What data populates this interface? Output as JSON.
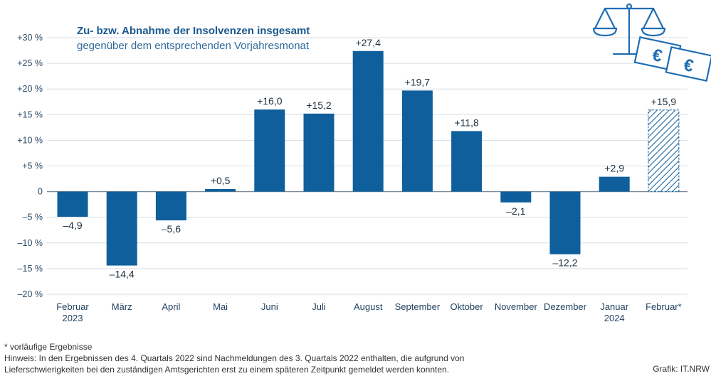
{
  "chart_data": {
    "type": "bar",
    "title": "Zu- bzw. Abnahme der Insolvenzen insgesamt",
    "subtitle": "gegenüber dem entsprechenden Vorjahresmonat",
    "categories": [
      [
        "Februar",
        "2023"
      ],
      [
        "März"
      ],
      [
        "April"
      ],
      [
        "Mai"
      ],
      [
        "Juni"
      ],
      [
        "Juli"
      ],
      [
        "August"
      ],
      [
        "September"
      ],
      [
        "Oktober"
      ],
      [
        "November"
      ],
      [
        "Dezember"
      ],
      [
        "Januar",
        "2024"
      ],
      [
        "Februar*"
      ]
    ],
    "values": [
      -4.9,
      -14.4,
      -5.6,
      0.5,
      16.0,
      15.2,
      27.4,
      19.7,
      11.8,
      -2.1,
      -12.2,
      2.9,
      15.9
    ],
    "value_labels": [
      "–4,9",
      "–14,4",
      "–5,6",
      "+0,5",
      "+16,0",
      "+15,2",
      "+27,4",
      "+19,7",
      "+11,8",
      "–2,1",
      "–12,2",
      "+2,9",
      "+15,9"
    ],
    "provisional": [
      false,
      false,
      false,
      false,
      false,
      false,
      false,
      false,
      false,
      false,
      false,
      false,
      true
    ],
    "ylim": [
      -20,
      30
    ],
    "yticks": [
      30,
      25,
      20,
      15,
      10,
      5,
      0,
      -5,
      -10,
      -15,
      -20
    ],
    "ytick_labels": [
      "+30 %",
      "+25 %",
      "+20 %",
      "+15 %",
      "+10 %",
      "+5 %",
      "0",
      "–5 %",
      "–10 %",
      "–15 %",
      "–20 %"
    ],
    "grid": true,
    "bar_color": "#0f5f9c"
  },
  "footnote_1": "* vorläufige Ergebnisse",
  "footnote_2": "Hinweis: In den Ergebnissen des 4. Quartals 2022 sind Nachmeldungen des 3. Quartals 2022 enthalten, die aufgrund von",
  "footnote_3": "Lieferschwierigkeiten bei den zuständigen Amtsgerichten erst zu einem späteren Zeitpunkt gemeldet werden konnten.",
  "credit": "Grafik: IT.NRW",
  "icons": {
    "scale": "balance-scale-icon",
    "money": "euro-banknotes-icon"
  }
}
